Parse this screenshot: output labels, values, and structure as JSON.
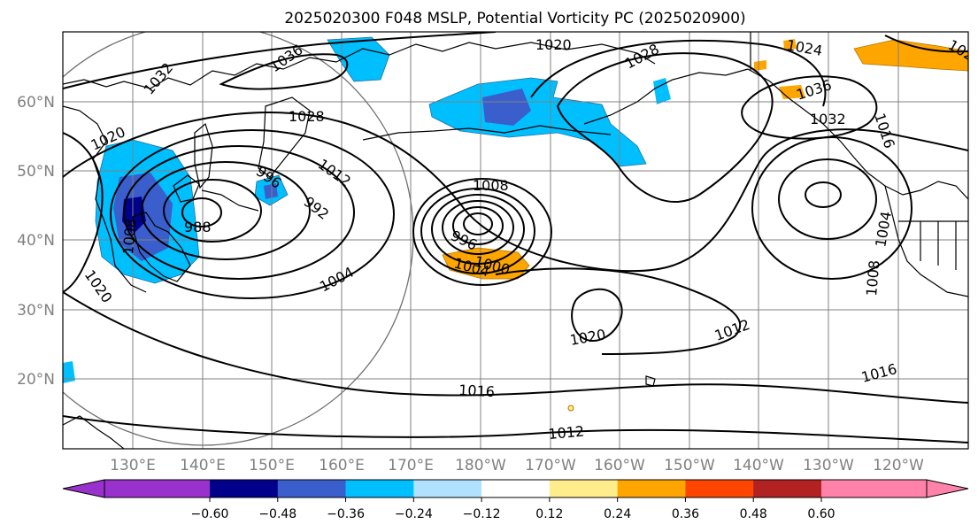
{
  "title": "2025020300 F048 MSLP, Potential Vorticity PC (2025020900)",
  "map": {
    "lat_labels": [
      "60°N",
      "50°N",
      "40°N",
      "30°N",
      "20°N"
    ],
    "lon_labels": [
      "130°E",
      "140°E",
      "150°E",
      "160°E",
      "170°E",
      "180°W",
      "170°W",
      "160°W",
      "150°W",
      "140°W",
      "130°W",
      "120°W"
    ],
    "gridline_color": "#808080",
    "fields": [
      "MSLP isobars (hPa)",
      "Potential Vorticity PC (shaded)"
    ]
  },
  "contour_labels": [
    {
      "id": "c1020a",
      "text": "1020"
    },
    {
      "id": "c1028a",
      "text": "1028"
    },
    {
      "id": "c1036",
      "text": "1036"
    },
    {
      "id": "c1032a",
      "text": "1032"
    },
    {
      "id": "c1024a",
      "text": "1024"
    },
    {
      "id": "c1036b",
      "text": "1036"
    },
    {
      "id": "c1032b",
      "text": "1032"
    },
    {
      "id": "c1028b",
      "text": "1028"
    },
    {
      "id": "c1020b",
      "text": "1020"
    },
    {
      "id": "c1016a",
      "text": "1016"
    },
    {
      "id": "c1012a",
      "text": "1012"
    },
    {
      "id": "c996",
      "text": "996"
    },
    {
      "id": "c992",
      "text": "992"
    },
    {
      "id": "c988",
      "text": "988"
    },
    {
      "id": "c1008a",
      "text": "1008"
    },
    {
      "id": "c1004a",
      "text": "1004"
    },
    {
      "id": "c1020c",
      "text": "1020"
    },
    {
      "id": "c1008b",
      "text": "1008"
    },
    {
      "id": "c1004b",
      "text": "1004"
    },
    {
      "id": "c1000",
      "text": "1000"
    },
    {
      "id": "c996b",
      "text": "996"
    },
    {
      "id": "c1020d",
      "text": "1020"
    },
    {
      "id": "c1012b",
      "text": "1012"
    },
    {
      "id": "c1016b",
      "text": "1016"
    },
    {
      "id": "c1012c",
      "text": "1012"
    },
    {
      "id": "c1004c",
      "text": "1004"
    },
    {
      "id": "c1008c",
      "text": "1008"
    },
    {
      "id": "c1016c",
      "text": "1016"
    },
    {
      "id": "c1028c",
      "text": "1028"
    }
  ],
  "colorbar": {
    "colors": [
      "#9932cc",
      "#00008b",
      "#3a5fcd",
      "#00bfff",
      "#b0e2ff",
      "#ffffff",
      "#ffec8b",
      "#ffa500",
      "#ff4500",
      "#b22222",
      "#ff82ab"
    ],
    "ticks": [
      "−0.60",
      "−0.48",
      "−0.36",
      "−0.24",
      "−0.12",
      "0.12",
      "0.24",
      "0.36",
      "0.48",
      "0.60"
    ]
  },
  "shading_colors": {
    "light_blue": "#00bfff",
    "mid_blue": "#3a5fcd",
    "pale_blue": "#b0e2ff",
    "orange": "#ffa500",
    "light_yellow": "#ffec8b"
  }
}
